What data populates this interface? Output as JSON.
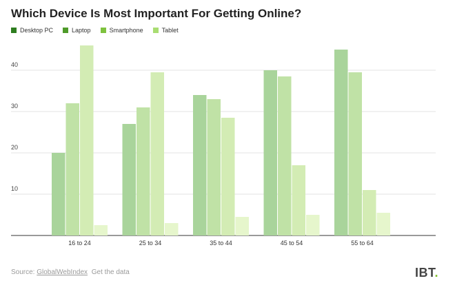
{
  "chart_data": {
    "type": "bar",
    "title": "Which Device Is Most Important For Getting Online?",
    "categories": [
      "16 to 24",
      "25 to 34",
      "35 to 44",
      "45 to 54",
      "55 to 64"
    ],
    "series": [
      {
        "name": "Desktop PC",
        "color": "#a9d49b",
        "values": [
          20,
          27,
          34,
          40,
          45
        ]
      },
      {
        "name": "Laptop",
        "color": "#c0e2a6",
        "values": [
          32,
          31,
          33,
          38.5,
          39.5
        ]
      },
      {
        "name": "Smartphone",
        "color": "#d3ecb4",
        "values": [
          46,
          39.5,
          28.5,
          17,
          11
        ]
      },
      {
        "name": "Tablet",
        "color": "#e6f6cc",
        "values": [
          2.5,
          3,
          4.5,
          5,
          5.5
        ]
      }
    ],
    "legend_colors": [
      "#2e7d1f",
      "#4e9a2a",
      "#7ec23e",
      "#a9dd72"
    ],
    "yticks": [
      10,
      20,
      30,
      40
    ],
    "ylim": [
      0,
      50
    ],
    "grid": true,
    "legend_position": "top-left"
  },
  "footer": {
    "source_label": "Source:",
    "source_link": "GlobalWebIndex",
    "data_link": "Get the data"
  },
  "logo": {
    "text": "IBT",
    "dot": "."
  }
}
